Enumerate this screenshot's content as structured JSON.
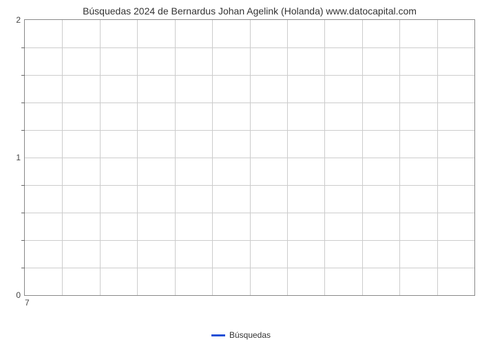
{
  "chart": {
    "type": "line",
    "title": "Búsquedas 2024 de Bernardus Johan Agelink (Holanda) www.datocapital.com",
    "title_fontsize": 14,
    "title_color": "#333333",
    "background_color": "#ffffff",
    "plot_border_color": "#888888",
    "grid_color": "#cccccc",
    "y_axis": {
      "ylim": [
        0,
        2
      ],
      "major_ticks": [
        0,
        1,
        2
      ],
      "minor_tick_count_between": 4,
      "label_fontsize": 12,
      "label_color": "#444444"
    },
    "x_axis": {
      "tick_labels": [
        "7"
      ],
      "tick_positions": [
        0
      ],
      "vertical_gridlines": 12,
      "label_fontsize": 12,
      "label_color": "#444444"
    },
    "horizontal_gridlines": 10,
    "series": [
      {
        "name": "Búsquedas",
        "color": "#1f4fd6",
        "line_width": 3,
        "data": []
      }
    ],
    "legend": {
      "position": "bottom-center",
      "label": "Búsquedas",
      "swatch_color": "#1f4fd6",
      "fontsize": 12,
      "text_color": "#333333"
    }
  }
}
